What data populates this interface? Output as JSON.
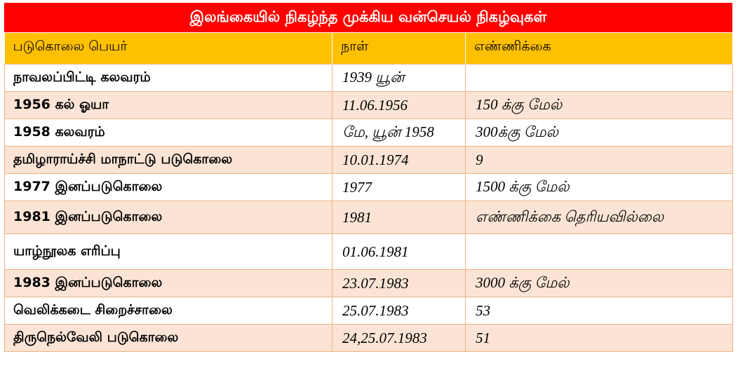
{
  "title": "இலங்கையில் நிகழ்ந்த முக்கிய வன்செயல் நிகழ்வுகள்",
  "headers": [
    "படுகொலை பெயர்",
    "நாள்",
    "எண்ணிக்கை"
  ],
  "rows": [
    {
      "name": "நாவலப்பிட்டி கலவரம்",
      "date": "1939 யூன்",
      "count": ""
    },
    {
      "name": "1956 கல் ஓயா",
      "date": "11.06.1956",
      "count": "150 க்கு மேல்"
    },
    {
      "name": "1958 கலவரம்",
      "date": "மே, யூன் 1958",
      "count": "300க்கு மேல்"
    },
    {
      "name": "தமிழாராய்ச்சி மாநாட்டு படுகொலை",
      "date": "10.01.1974",
      "count": "9"
    },
    {
      "name": "1977 இனப்படுகொலை",
      "date": "1977",
      "count": "1500 க்கு மேல்"
    },
    {
      "name": "1981 இனப்படுகொலை",
      "date": "1981",
      "count": "எண்ணிக்கை தெரியவில்லை"
    },
    {
      "name": "யாழ்நூலக எரிப்பு",
      "date": "01.06.1981",
      "count": ""
    },
    {
      "name": "1983 இனப்படுகொலை",
      "date": "23.07.1983",
      "count": "3000 க்கு மேல்"
    },
    {
      "name": "வெலிக்கடை சிறைச்சாலை",
      "date": "25.07.1983",
      "count": "53"
    },
    {
      "name": "திருநெல்வேலி படுகொலை",
      "date": "24,25.07.1983",
      "count": "51"
    }
  ],
  "colors": {
    "title_bg": "#ff0000",
    "header_bg": "#ffc000",
    "row_alt": "#fbe4d5",
    "border": "#f4b183"
  }
}
